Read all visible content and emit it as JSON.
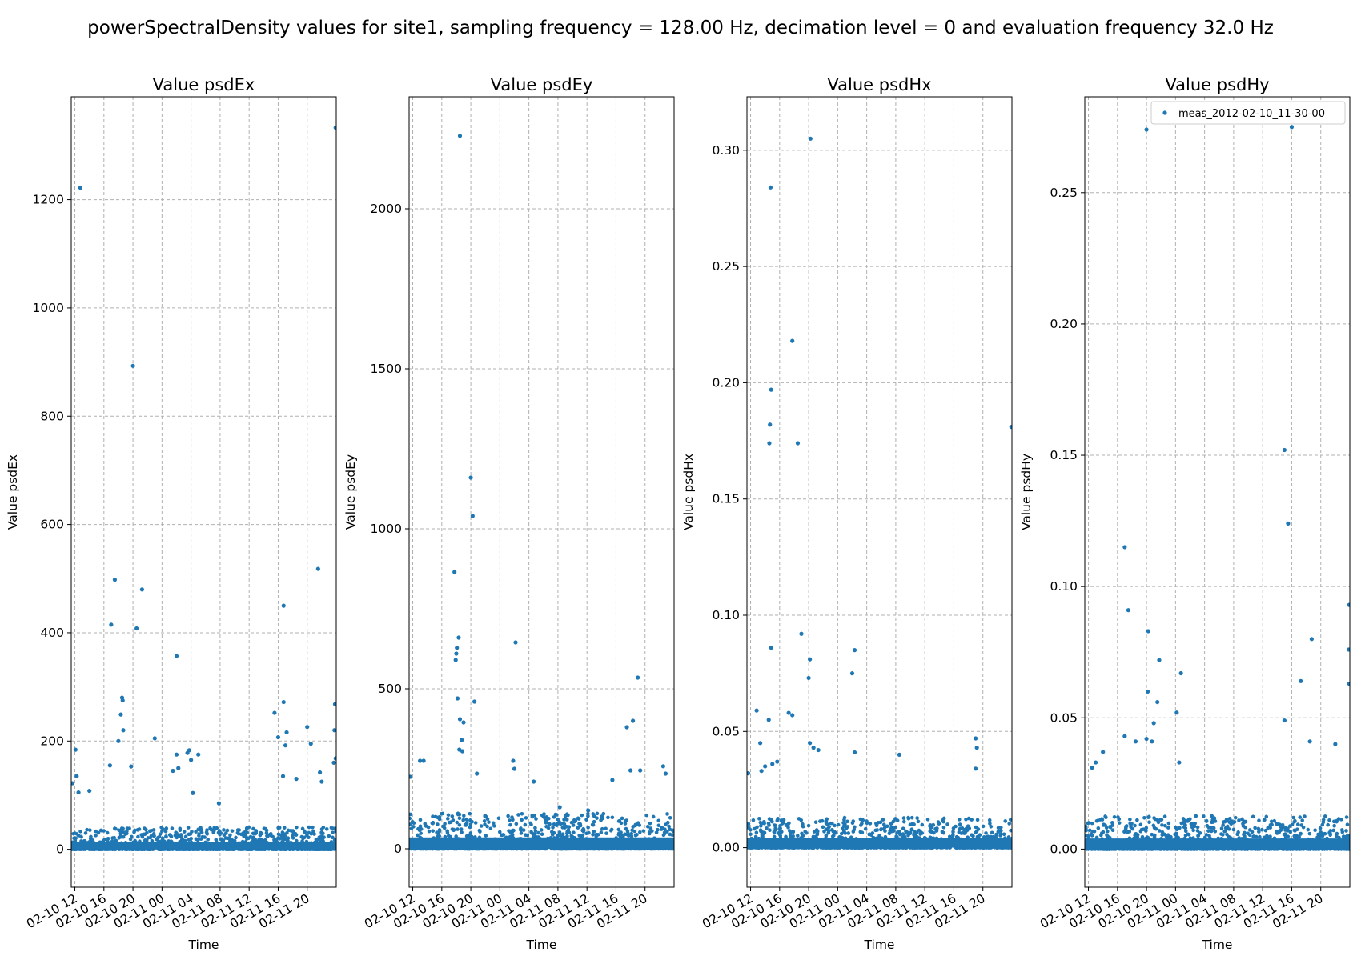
{
  "figure": {
    "title": "powerSpectralDensity values for site1, sampling frequency = 128.00 Hz, decimation level = 0 and evaluation frequency 32.0 Hz"
  },
  "chart_data": [
    {
      "type": "scatter",
      "title": "Value psdEx",
      "xlabel": "Time",
      "ylabel": "Value psdEx",
      "xlim": [
        "2012-02-10 11:30",
        "2012-02-12 00:00"
      ],
      "ylim": [
        -70,
        1390
      ],
      "x_ticks": [
        "02-10 12",
        "02-10 16",
        "02-10 20",
        "02-11 00",
        "02-11 04",
        "02-11 08",
        "02-11 12",
        "02-11 16",
        "02-11 20"
      ],
      "y_ticks": [
        "0",
        "200",
        "400",
        "600",
        "800",
        "1000",
        "1200"
      ],
      "grid": true,
      "color": "#1f77b4",
      "series": [
        {
          "name": "meas_2012-02-10_11-30-00",
          "points": [
            [
              "2012-02-10 12:45",
              1222
            ],
            [
              "2012-02-11 23:55",
              1333
            ],
            [
              "2012-02-10 20:00",
              893
            ],
            [
              "2012-02-10 17:30",
              498
            ],
            [
              "2012-02-10 21:15",
              480
            ],
            [
              "2012-02-10 17:00",
              415
            ],
            [
              "2012-02-10 20:30",
              408
            ],
            [
              "2012-02-11 02:00",
              357
            ],
            [
              "2012-02-11 21:30",
              518
            ],
            [
              "2012-02-11 16:45",
              450
            ],
            [
              "2012-02-10 18:30",
              280
            ],
            [
              "2012-02-10 18:35",
              275
            ],
            [
              "2012-02-11 16:45",
              272
            ],
            [
              "2012-02-11 23:50",
              268
            ],
            [
              "2012-02-11 15:30",
              252
            ],
            [
              "2012-02-10 18:20",
              249
            ],
            [
              "2012-02-11 20:00",
              226
            ],
            [
              "2012-02-10 18:40",
              220
            ],
            [
              "2012-02-11 17:10",
              216
            ],
            [
              "2012-02-11 23:45",
              220
            ],
            [
              "2012-02-10 23:00",
              205
            ],
            [
              "2012-02-11 16:00",
              207
            ],
            [
              "2012-02-10 18:00",
              200
            ],
            [
              "2012-02-11 20:30",
              195
            ],
            [
              "2012-02-11 17:00",
              192
            ],
            [
              "2012-02-10 12:05",
              184
            ],
            [
              "2012-02-11 03:45",
              183
            ],
            [
              "2012-02-11 03:30",
              178
            ],
            [
              "2012-02-11 05:00",
              175
            ],
            [
              "2012-02-11 02:00",
              175
            ],
            [
              "2012-02-11 23:55",
              168
            ],
            [
              "2012-02-11 04:00",
              165
            ],
            [
              "2012-02-11 23:40",
              160
            ],
            [
              "2012-02-10 19:45",
              153
            ],
            [
              "2012-02-11 02:15",
              150
            ],
            [
              "2012-02-10 16:50",
              155
            ],
            [
              "2012-02-11 01:30",
              145
            ],
            [
              "2012-02-11 21:45",
              142
            ],
            [
              "2012-02-10 12:15",
              135
            ],
            [
              "2012-02-11 16:40",
              135
            ],
            [
              "2012-02-11 18:30",
              130
            ],
            [
              "2012-02-10 11:40",
              122
            ],
            [
              "2012-02-11 22:00",
              125
            ],
            [
              "2012-02-11 04:15",
              104
            ],
            [
              "2012-02-10 12:30",
              105
            ],
            [
              "2012-02-10 14:00",
              108
            ],
            [
              "2012-02-11 07:50",
              85
            ]
          ]
        }
      ]
    },
    {
      "type": "scatter",
      "title": "Value psdEy",
      "xlabel": "Time",
      "ylabel": "Value psdEy",
      "xlim": [
        "2012-02-10 11:30",
        "2012-02-12 00:00"
      ],
      "ylim": [
        -120,
        2350
      ],
      "x_ticks": [
        "02-10 12",
        "02-10 16",
        "02-10 20",
        "02-11 00",
        "02-11 04",
        "02-11 08",
        "02-11 12",
        "02-11 16",
        "02-11 20"
      ],
      "y_ticks": [
        "0",
        "500",
        "1000",
        "1500",
        "2000"
      ],
      "grid": true,
      "color": "#1f77b4",
      "series": [
        {
          "name": "meas_2012-02-10_11-30-00",
          "points": [
            [
              "2012-02-10 18:30",
              2228
            ],
            [
              "2012-02-10 20:00",
              1160
            ],
            [
              "2012-02-10 20:15",
              1040
            ],
            [
              "2012-02-10 17:45",
              865
            ],
            [
              "2012-02-10 18:20",
              660
            ],
            [
              "2012-02-10 18:05",
              628
            ],
            [
              "2012-02-10 18:00",
              610
            ],
            [
              "2012-02-10 17:55",
              590
            ],
            [
              "2012-02-11 02:10",
              645
            ],
            [
              "2012-02-11 19:00",
              535
            ],
            [
              "2012-02-10 18:10",
              470
            ],
            [
              "2012-02-10 20:30",
              460
            ],
            [
              "2012-02-10 18:30",
              405
            ],
            [
              "2012-02-11 18:20",
              400
            ],
            [
              "2012-02-10 19:00",
              395
            ],
            [
              "2012-02-11 17:30",
              380
            ],
            [
              "2012-02-10 18:45",
              340
            ],
            [
              "2012-02-10 18:25",
              310
            ],
            [
              "2012-02-10 18:50",
              305
            ],
            [
              "2012-02-11 01:50",
              275
            ],
            [
              "2012-02-11 22:30",
              258
            ],
            [
              "2012-02-11 02:00",
              250
            ],
            [
              "2012-02-10 13:00",
              275
            ],
            [
              "2012-02-10 13:30",
              275
            ],
            [
              "2012-02-11 18:00",
              245
            ],
            [
              "2012-02-11 19:20",
              245
            ],
            [
              "2012-02-10 20:50",
              235
            ],
            [
              "2012-02-11 15:30",
              215
            ],
            [
              "2012-02-11 04:40",
              210
            ],
            [
              "2012-02-10 11:40",
              225
            ],
            [
              "2012-02-11 22:50",
              235
            ],
            [
              "2012-02-11 12:10",
              120
            ],
            [
              "2012-02-11 08:15",
              130
            ]
          ]
        }
      ]
    },
    {
      "type": "scatter",
      "title": "Value psdHx",
      "xlabel": "Time",
      "ylabel": "Value psdHx",
      "xlim": [
        "2012-02-10 11:30",
        "2012-02-12 00:00"
      ],
      "ylim": [
        -0.017,
        0.323
      ],
      "x_ticks": [
        "02-10 12",
        "02-10 16",
        "02-10 20",
        "02-11 00",
        "02-11 04",
        "02-11 08",
        "02-11 12",
        "02-11 16",
        "02-11 20"
      ],
      "y_ticks": [
        "0.00",
        "0.05",
        "0.10",
        "0.15",
        "0.20",
        "0.25",
        "0.30"
      ],
      "grid": true,
      "color": "#1f77b4",
      "series": [
        {
          "name": "meas_2012-02-10_11-30-00",
          "points": [
            [
              "2012-02-10 20:15",
              0.305
            ],
            [
              "2012-02-10 14:45",
              0.284
            ],
            [
              "2012-02-10 17:45",
              0.218
            ],
            [
              "2012-02-10 14:50",
              0.197
            ],
            [
              "2012-02-10 14:40",
              0.182
            ],
            [
              "2012-02-11 23:55",
              0.181
            ],
            [
              "2012-02-10 14:35",
              0.174
            ],
            [
              "2012-02-10 18:30",
              0.174
            ],
            [
              "2012-02-10 19:00",
              0.092
            ],
            [
              "2012-02-10 14:50",
              0.086
            ],
            [
              "2012-02-11 02:20",
              0.085
            ],
            [
              "2012-02-10 20:10",
              0.081
            ],
            [
              "2012-02-11 02:00",
              0.075
            ],
            [
              "2012-02-10 20:00",
              0.073
            ],
            [
              "2012-02-10 12:50",
              0.059
            ],
            [
              "2012-02-10 17:15",
              0.058
            ],
            [
              "2012-02-10 17:45",
              0.057
            ],
            [
              "2012-02-10 14:30",
              0.055
            ],
            [
              "2012-02-11 19:00",
              0.047
            ],
            [
              "2012-02-10 13:20",
              0.045
            ],
            [
              "2012-02-10 20:10",
              0.045
            ],
            [
              "2012-02-10 20:40",
              0.043
            ],
            [
              "2012-02-10 21:20",
              0.042
            ],
            [
              "2012-02-11 19:10",
              0.043
            ],
            [
              "2012-02-11 02:20",
              0.041
            ],
            [
              "2012-02-11 08:30",
              0.04
            ],
            [
              "2012-02-10 15:40",
              0.037
            ],
            [
              "2012-02-10 15:00",
              0.036
            ],
            [
              "2012-02-10 14:00",
              0.035
            ],
            [
              "2012-02-11 19:00",
              0.034
            ],
            [
              "2012-02-10 13:30",
              0.033
            ],
            [
              "2012-02-10 11:40",
              0.032
            ]
          ]
        }
      ]
    },
    {
      "type": "scatter",
      "title": "Value psdHy",
      "xlabel": "Time",
      "ylabel": "Value psdHy",
      "xlim": [
        "2012-02-10 11:30",
        "2012-02-12 00:00"
      ],
      "ylim": [
        -0.0145,
        0.2865
      ],
      "x_ticks": [
        "02-10 12",
        "02-10 16",
        "02-10 20",
        "02-11 00",
        "02-11 04",
        "02-11 08",
        "02-11 12",
        "02-11 16",
        "02-11 20"
      ],
      "y_ticks": [
        "0.00",
        "0.05",
        "0.10",
        "0.15",
        "0.20",
        "0.25"
      ],
      "grid": true,
      "legend": "top-right",
      "color": "#1f77b4",
      "series": [
        {
          "name": "meas_2012-02-10_11-30-00",
          "points": [
            [
              "2012-02-10 20:00",
              0.274
            ],
            [
              "2012-02-11 16:00",
              0.275
            ],
            [
              "2012-02-11 15:00",
              0.152
            ],
            [
              "2012-02-11 15:30",
              0.124
            ],
            [
              "2012-02-10 17:00",
              0.115
            ],
            [
              "2012-02-11 23:55",
              0.093
            ],
            [
              "2012-02-10 17:30",
              0.091
            ],
            [
              "2012-02-10 20:15",
              0.083
            ],
            [
              "2012-02-11 18:45",
              0.08
            ],
            [
              "2012-02-11 23:50",
              0.076
            ],
            [
              "2012-02-10 21:45",
              0.072
            ],
            [
              "2012-02-11 00:45",
              0.067
            ],
            [
              "2012-02-11 17:15",
              0.064
            ],
            [
              "2012-02-11 23:55",
              0.063
            ],
            [
              "2012-02-10 20:10",
              0.06
            ],
            [
              "2012-02-10 21:30",
              0.056
            ],
            [
              "2012-02-11 00:10",
              0.052
            ],
            [
              "2012-02-11 15:00",
              0.049
            ],
            [
              "2012-02-10 21:00",
              0.048
            ],
            [
              "2012-02-10 17:00",
              0.043
            ],
            [
              "2012-02-10 20:00",
              0.042
            ],
            [
              "2012-02-10 20:45",
              0.041
            ],
            [
              "2012-02-10 18:30",
              0.041
            ],
            [
              "2012-02-11 18:30",
              0.041
            ],
            [
              "2012-02-11 22:00",
              0.04
            ],
            [
              "2012-02-10 14:00",
              0.037
            ],
            [
              "2012-02-10 13:00",
              0.033
            ],
            [
              "2012-02-11 00:30",
              0.033
            ],
            [
              "2012-02-10 12:30",
              0.031
            ]
          ]
        }
      ]
    }
  ]
}
